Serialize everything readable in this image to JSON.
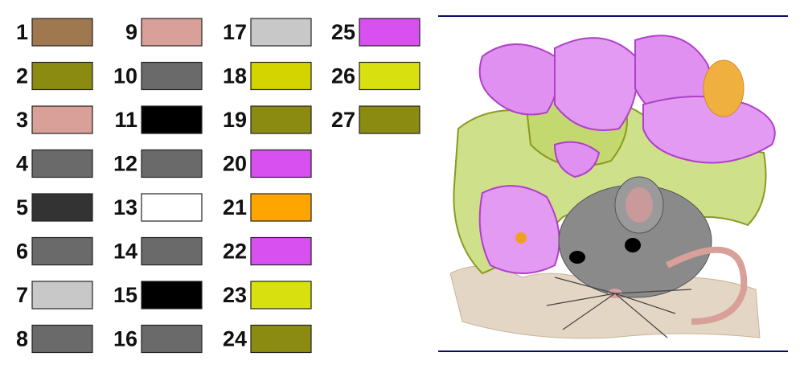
{
  "swatches": [
    {
      "label": "1",
      "color": "#a07850"
    },
    {
      "label": "2",
      "color": "#8b8b12"
    },
    {
      "label": "3",
      "color": "#d8a098"
    },
    {
      "label": "4",
      "color": "#6a6a6a"
    },
    {
      "label": "5",
      "color": "#333333"
    },
    {
      "label": "6",
      "color": "#6a6a6a"
    },
    {
      "label": "7",
      "color": "#c8c8c8"
    },
    {
      "label": "8",
      "color": "#6a6a6a"
    },
    {
      "label": "9",
      "color": "#d8a098"
    },
    {
      "label": "10",
      "color": "#6a6a6a"
    },
    {
      "label": "11",
      "color": "#000000"
    },
    {
      "label": "12",
      "color": "#6a6a6a"
    },
    {
      "label": "13",
      "color": "#ffffff"
    },
    {
      "label": "14",
      "color": "#6a6a6a"
    },
    {
      "label": "15",
      "color": "#000000"
    },
    {
      "label": "16",
      "color": "#6a6a6a"
    },
    {
      "label": "17",
      "color": "#c8c8c8"
    },
    {
      "label": "18",
      "color": "#d4d400"
    },
    {
      "label": "19",
      "color": "#8b8b12"
    },
    {
      "label": "20",
      "color": "#d850f0"
    },
    {
      "label": "21",
      "color": "#ffa500"
    },
    {
      "label": "22",
      "color": "#d850f0"
    },
    {
      "label": "23",
      "color": "#d8e010"
    },
    {
      "label": "24",
      "color": "#8b8b12"
    },
    {
      "label": "25",
      "color": "#d850f0"
    },
    {
      "label": "26",
      "color": "#d8e010"
    },
    {
      "label": "27",
      "color": "#8b8b12"
    }
  ]
}
